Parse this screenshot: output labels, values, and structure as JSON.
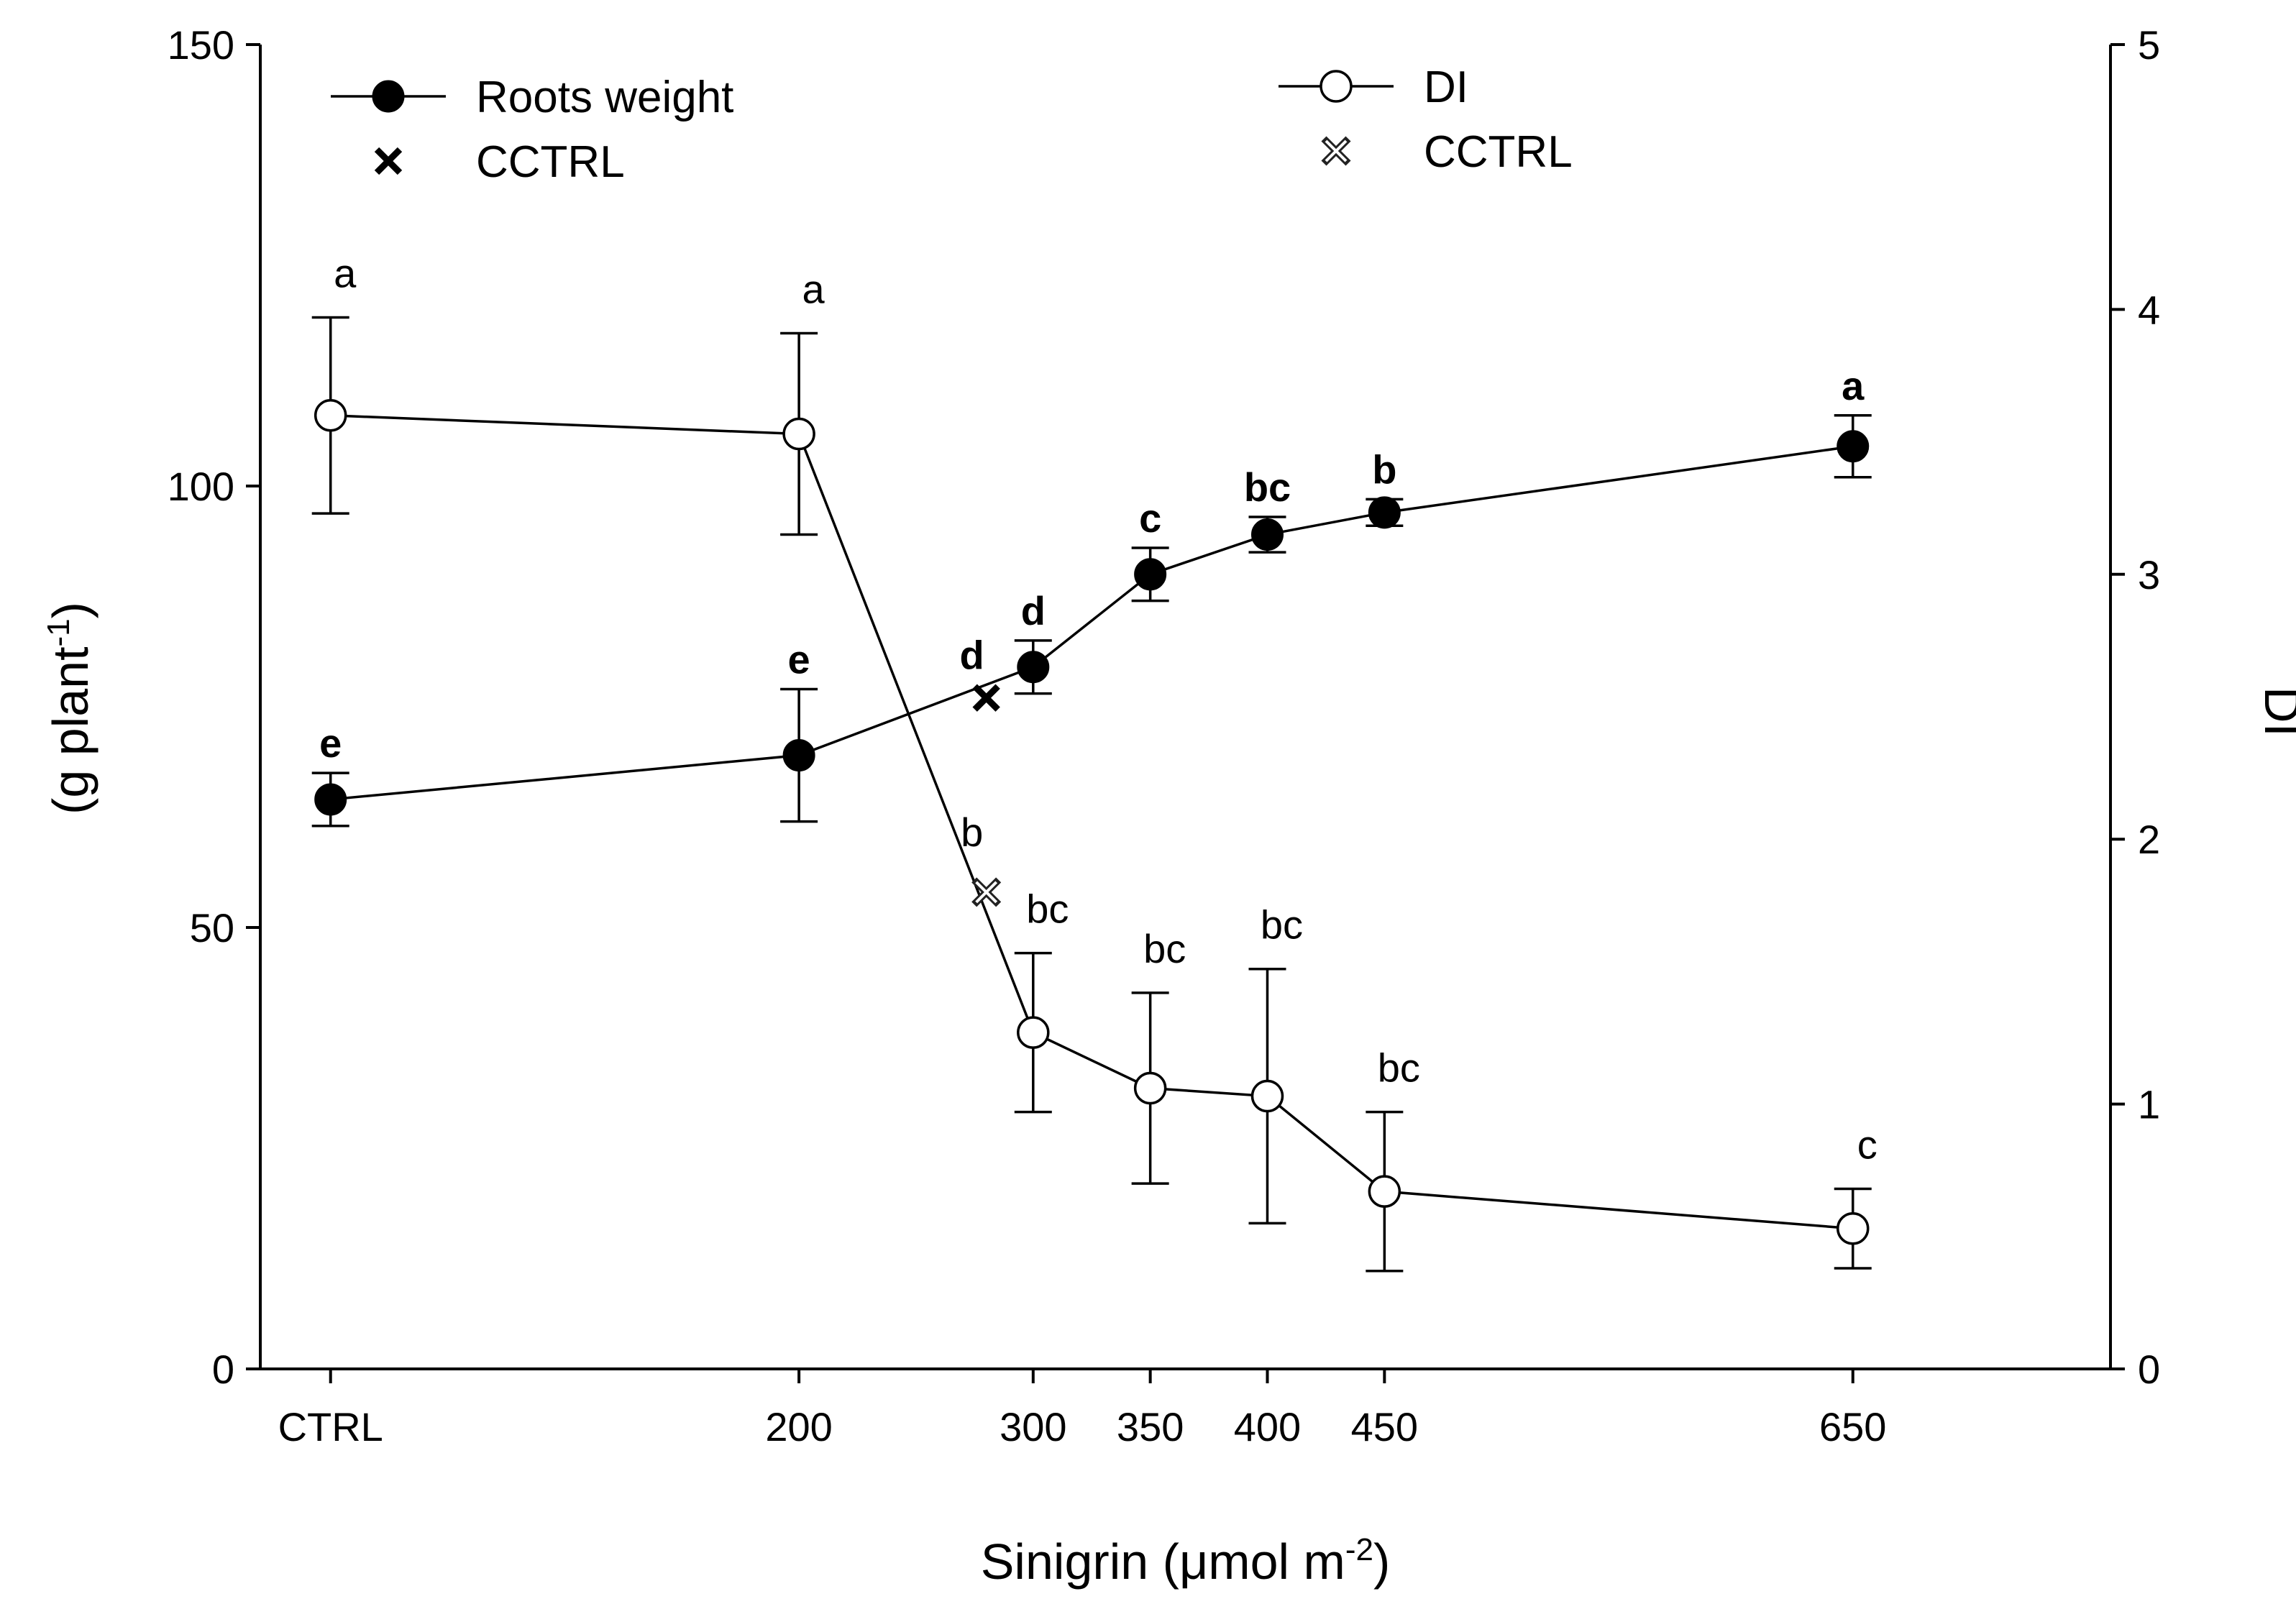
{
  "chart_data": {
    "type": "line",
    "xlabel": "Sinigrin (μmol m",
    "xlabel_sup": "-2",
    "xlabel_end": ")",
    "ylabel_left": "(g plant",
    "ylabel_left_sup": "-1",
    "ylabel_left_end": ")",
    "ylabel_right": "DI",
    "ylim_left": [
      0,
      150
    ],
    "ylim_right": [
      0,
      5
    ],
    "y_ticks_left": [
      0,
      50,
      100,
      150
    ],
    "y_ticks_right": [
      0,
      1,
      2,
      3,
      4,
      5
    ],
    "x_ticks": [
      {
        "label": "CTRL",
        "x": 0
      },
      {
        "label": "200",
        "x": 200
      },
      {
        "label": "300",
        "x": 300
      },
      {
        "label": "350",
        "x": 350
      },
      {
        "label": "400",
        "x": 400
      },
      {
        "label": "450",
        "x": 450
      },
      {
        "label": "650",
        "x": 650
      }
    ],
    "series": [
      {
        "name": "Roots weight",
        "axis": "left",
        "marker": "filled-circle",
        "points": [
          {
            "x": 0,
            "y": 64.5,
            "err": 3,
            "letter": "e"
          },
          {
            "x": 200,
            "y": 69.5,
            "err": 7.5,
            "letter": "e"
          },
          {
            "x": 300,
            "y": 79.5,
            "err": 3,
            "letter": "d"
          },
          {
            "x": 350,
            "y": 90,
            "err": 3,
            "letter": "c"
          },
          {
            "x": 400,
            "y": 94.5,
            "err": 2,
            "letter": "bc"
          },
          {
            "x": 450,
            "y": 97,
            "err": 1.5,
            "letter": "b"
          },
          {
            "x": 650,
            "y": 104.5,
            "err": 3.5,
            "letter": "a"
          }
        ]
      },
      {
        "name": "DI",
        "axis": "right",
        "marker": "open-circle",
        "points": [
          {
            "x": 0,
            "y": 3.6,
            "err": 0.37,
            "letter": "a"
          },
          {
            "x": 200,
            "y": 3.53,
            "err": 0.38,
            "letter": "a"
          },
          {
            "x": 300,
            "y": 1.27,
            "err": 0.3,
            "letter": "bc"
          },
          {
            "x": 350,
            "y": 1.06,
            "err": 0.36,
            "letter": "bc"
          },
          {
            "x": 400,
            "y": 1.03,
            "err": 0.48,
            "letter": "bc"
          },
          {
            "x": 450,
            "y": 0.67,
            "err": 0.3,
            "letter": "bc"
          },
          {
            "x": 650,
            "y": 0.53,
            "err": 0.15,
            "letter": "c"
          }
        ]
      }
    ],
    "controls": [
      {
        "name": "CCTRL",
        "axis": "left",
        "marker": "x-bold",
        "x": 280,
        "y": 76,
        "letter": "d"
      },
      {
        "name": "CCTRL",
        "axis": "right",
        "marker": "x-gray",
        "x": 280,
        "y": 1.8,
        "letter": "b"
      }
    ],
    "legend_left": [
      {
        "label": "Roots weight",
        "marker": "filled-circle"
      },
      {
        "label": "CCTRL",
        "marker": "x-bold"
      }
    ],
    "legend_right": [
      {
        "label": "DI",
        "marker": "open-circle"
      },
      {
        "label": "CCTRL",
        "marker": "x-gray"
      }
    ]
  }
}
